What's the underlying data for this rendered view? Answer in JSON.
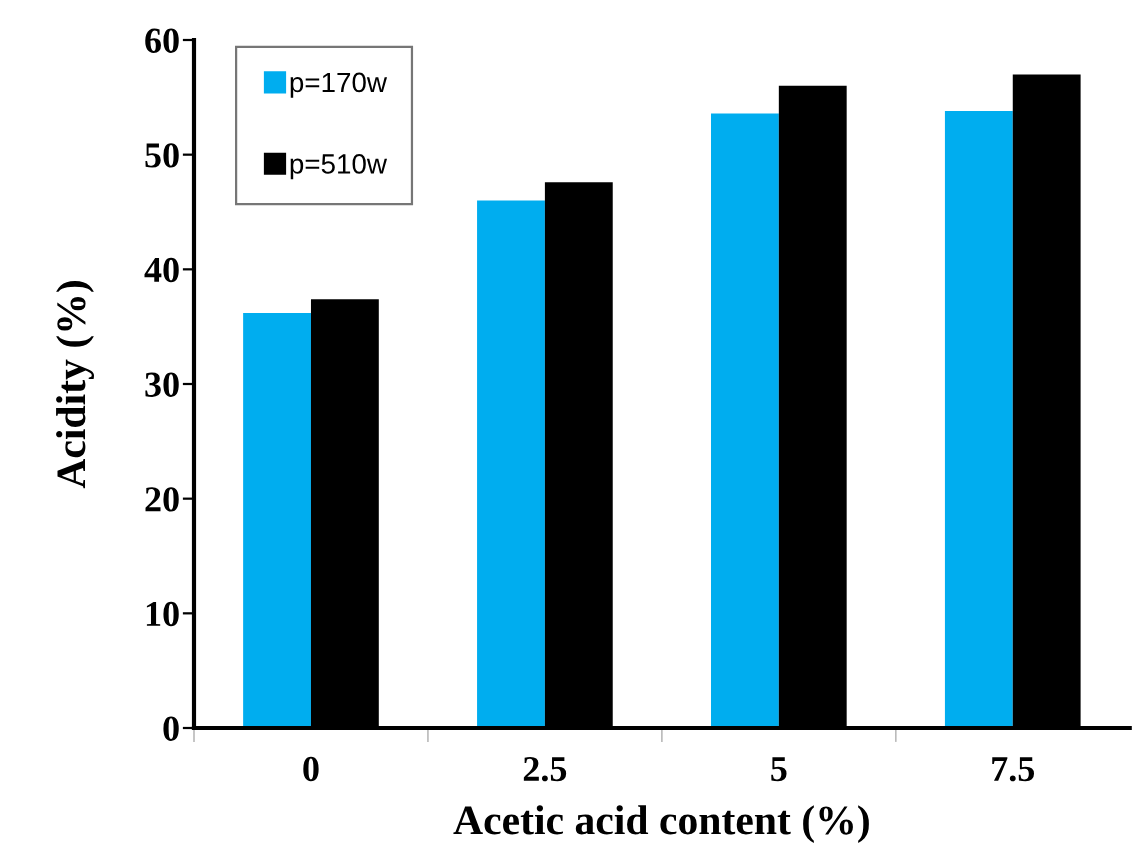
{
  "chart_data": {
    "type": "bar",
    "xlabel": "Acetic acid content (%)",
    "ylabel": "Acidity (%)",
    "categories": [
      "0",
      "2.5",
      "5",
      "7.5"
    ],
    "series": [
      {
        "name": "p=170w",
        "color": "#00adef",
        "values": [
          36.2,
          46.0,
          53.6,
          53.8
        ]
      },
      {
        "name": "p=510w",
        "color": "#000000",
        "values": [
          37.4,
          47.6,
          56.0,
          57.0
        ]
      }
    ],
    "ylim": [
      0,
      60
    ],
    "yticks": [
      0,
      10,
      20,
      30,
      40,
      50,
      60
    ],
    "grid": false,
    "legend": "top left"
  }
}
